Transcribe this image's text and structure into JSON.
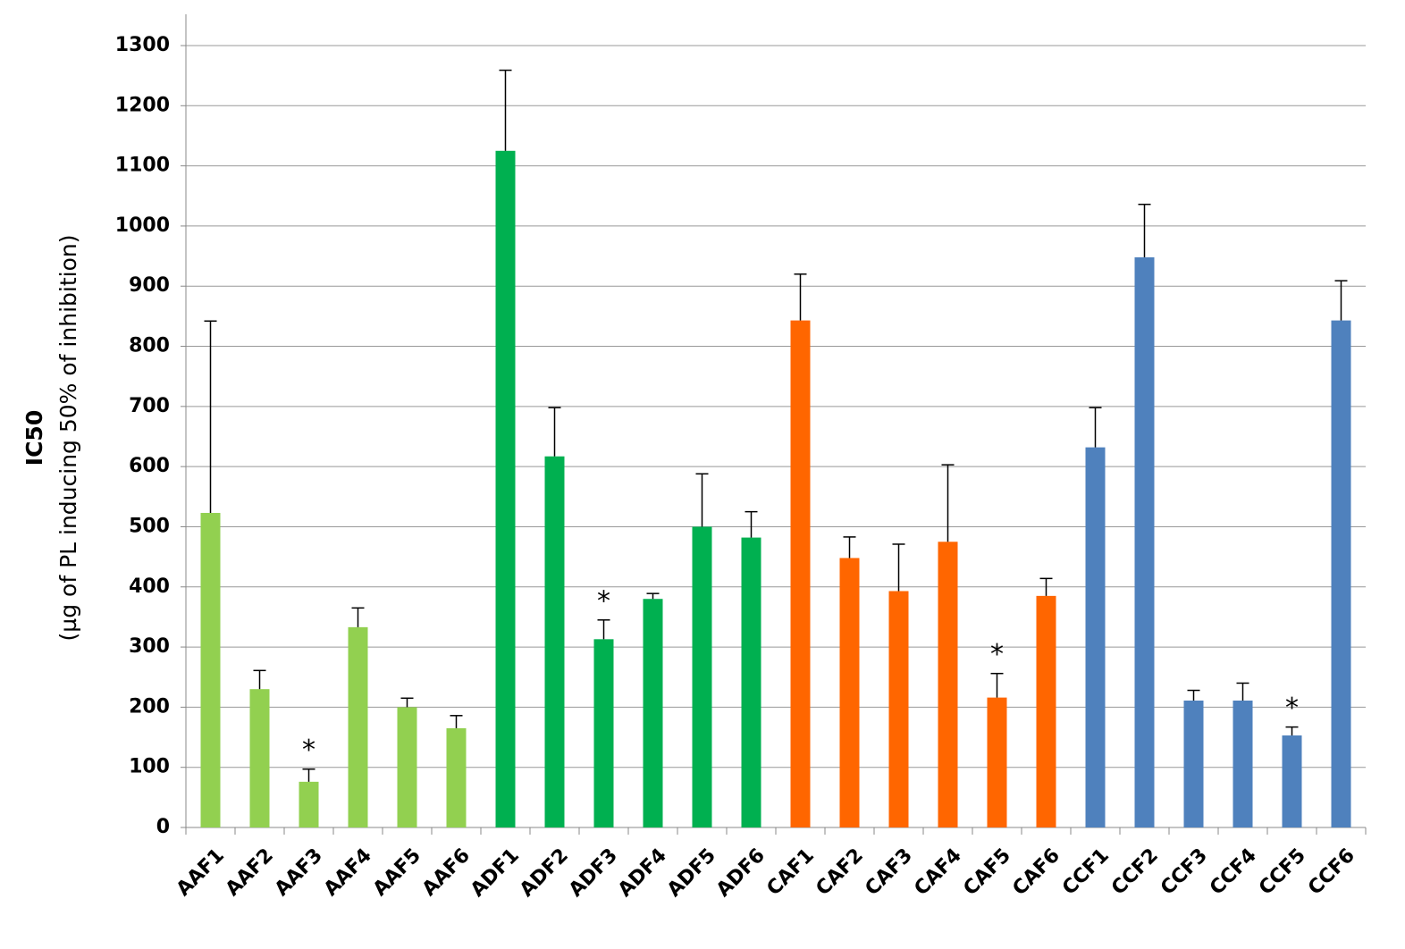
{
  "chart_data": {
    "type": "bar",
    "ylabel": [
      "IC50",
      "(µg of PL inducing 50% of inhibition)"
    ],
    "categories": [
      "AAF1",
      "AAF2",
      "AAF3",
      "AAF4",
      "AAF5",
      "AAF6",
      "ADF1",
      "ADF2",
      "ADF3",
      "ADF4",
      "ADF5",
      "ADF6",
      "CAF1",
      "CAF2",
      "CAF3",
      "CAF4",
      "CAF5",
      "CAF6",
      "CCF1",
      "CCF2",
      "CCF3",
      "CCF4",
      "CCF5",
      "CCF6"
    ],
    "values": [
      523,
      230,
      76,
      333,
      200,
      165,
      1125,
      617,
      313,
      380,
      500,
      482,
      843,
      448,
      393,
      475,
      216,
      385,
      632,
      948,
      211,
      211,
      153,
      843
    ],
    "errors": [
      319,
      31,
      21,
      32,
      15,
      21,
      134,
      81,
      32,
      9,
      88,
      43,
      77,
      35,
      78,
      128,
      40,
      29,
      66,
      88,
      17,
      29,
      14,
      66
    ],
    "colors": [
      "#92d050",
      "#92d050",
      "#92d050",
      "#92d050",
      "#92d050",
      "#92d050",
      "#00b050",
      "#00b050",
      "#00b050",
      "#00b050",
      "#00b050",
      "#00b050",
      "#ff6600",
      "#ff6600",
      "#ff6600",
      "#ff6600",
      "#ff6600",
      "#ff6600",
      "#4f81bd",
      "#4f81bd",
      "#4f81bd",
      "#4f81bd",
      "#4f81bd",
      "#4f81bd"
    ],
    "annotations": [
      null,
      null,
      "*",
      null,
      null,
      null,
      null,
      null,
      "*",
      null,
      null,
      null,
      null,
      null,
      null,
      null,
      "*",
      null,
      null,
      null,
      null,
      null,
      "*",
      null
    ],
    "ylim": [
      0,
      1300
    ],
    "yticks": [
      0,
      100,
      200,
      300,
      400,
      500,
      600,
      700,
      800,
      900,
      1000,
      1100,
      1200,
      1300
    ],
    "grid": true
  }
}
